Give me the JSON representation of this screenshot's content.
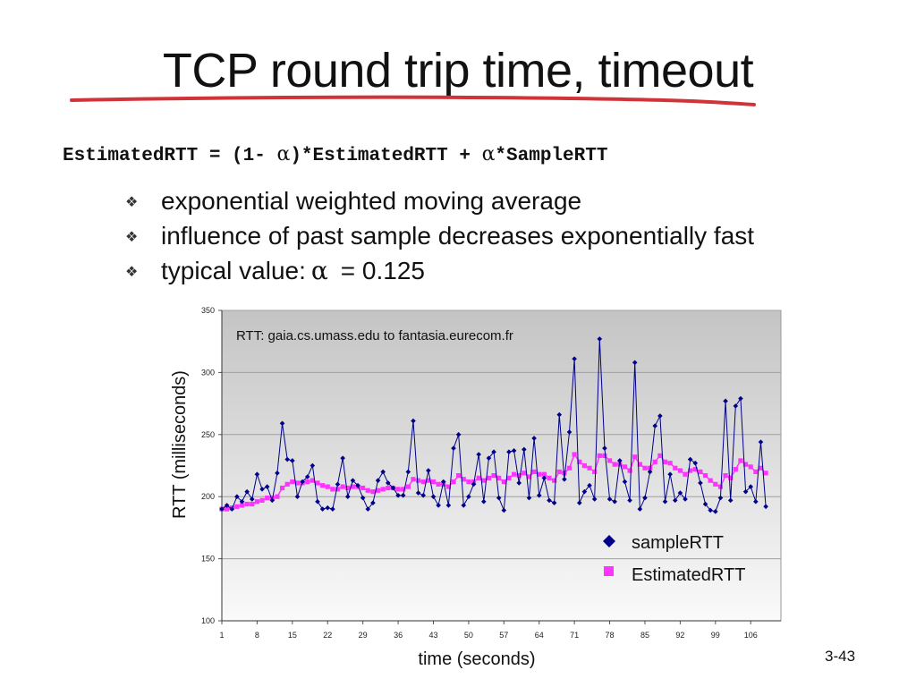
{
  "slide": {
    "title": "TCP round trip time, timeout",
    "formula": {
      "part1": "EstimatedRTT = (1- ",
      "alpha_1": "α",
      "part2": ")*EstimatedRTT + ",
      "alpha_2": "α",
      "part3": "*SampleRTT"
    },
    "bullets": [
      {
        "text": "exponential weighted moving average"
      },
      {
        "text": "influence of past sample decreases exponentially fast"
      },
      {
        "text": "typical value:",
        "alpha": "α",
        "value": "= 0.125"
      }
    ],
    "page_number": "3-43",
    "colors": {
      "title_underline": "#d13438",
      "plot_bg": "#cccccc",
      "sample": "#00008b",
      "estimated": "#ff33ff"
    }
  },
  "chart_data": {
    "type": "line",
    "title": "RTT: gaia.cs.umass.edu to fantasia.eurecom.fr",
    "xlabel": "time (seconds)",
    "ylabel": "RTT (milliseconds)",
    "ylim": [
      100,
      350
    ],
    "yticks": [
      100,
      150,
      200,
      250,
      300,
      350
    ],
    "xticks": [
      1,
      8,
      15,
      22,
      29,
      36,
      43,
      50,
      57,
      64,
      71,
      78,
      85,
      92,
      99,
      106
    ],
    "xlim": [
      1,
      112
    ],
    "grid": true,
    "legend": "bottom-right",
    "series": [
      {
        "name": "sampleRTT",
        "marker": "diamond",
        "color": "#00008b",
        "values": [
          190,
          193,
          190,
          200,
          196,
          204,
          198,
          218,
          206,
          208,
          197,
          219,
          259,
          230,
          229,
          200,
          212,
          216,
          225,
          196,
          190,
          191,
          190,
          210,
          231,
          200,
          213,
          209,
          199,
          190,
          195,
          213,
          220,
          211,
          207,
          201,
          201,
          220,
          261,
          203,
          201,
          221,
          200,
          193,
          212,
          193,
          239,
          250,
          193,
          200,
          210,
          234,
          196,
          231,
          236,
          199,
          189,
          236,
          237,
          211,
          238,
          199,
          247,
          201,
          215,
          197,
          195,
          266,
          214,
          252,
          311,
          195,
          204,
          209,
          198,
          327,
          239,
          198,
          196,
          229,
          212,
          197,
          308,
          190,
          199,
          220,
          257,
          265,
          196,
          218,
          197,
          203,
          198,
          230,
          227,
          211,
          194,
          189,
          188,
          199,
          277,
          197,
          273,
          279,
          204,
          208,
          196,
          244,
          192
        ],
        "x": [
          1,
          2,
          3,
          4,
          5,
          6,
          7,
          8,
          9,
          10,
          11,
          12,
          13,
          14,
          15,
          16,
          17,
          18,
          19,
          20,
          21,
          22,
          23,
          24,
          25,
          26,
          27,
          28,
          29,
          30,
          31,
          32,
          33,
          34,
          35,
          36,
          37,
          38,
          39,
          40,
          41,
          42,
          43,
          44,
          45,
          46,
          47,
          48,
          49,
          50,
          51,
          52,
          53,
          54,
          55,
          56,
          57,
          58,
          59,
          60,
          61,
          62,
          63,
          64,
          65,
          66,
          67,
          68,
          69,
          70,
          71,
          72,
          73,
          74,
          75,
          76,
          77,
          78,
          79,
          80,
          81,
          82,
          83,
          84,
          85,
          86,
          87,
          88,
          89,
          90,
          91,
          92,
          93,
          94,
          95,
          96,
          97,
          98,
          99,
          100,
          101,
          102,
          103,
          104,
          105,
          106,
          107,
          108,
          109
        ]
      },
      {
        "name": "EstimatedRTT",
        "marker": "square",
        "color": "#ff33ff",
        "values": [
          190,
          190,
          191,
          192,
          193,
          194,
          194,
          196,
          197,
          199,
          199,
          200,
          207,
          210,
          212,
          211,
          211,
          212,
          213,
          211,
          209,
          208,
          206,
          206,
          208,
          207,
          208,
          208,
          207,
          205,
          204,
          205,
          206,
          207,
          207,
          206,
          206,
          208,
          214,
          213,
          212,
          213,
          212,
          210,
          210,
          208,
          212,
          217,
          214,
          212,
          212,
          215,
          213,
          215,
          217,
          215,
          212,
          215,
          218,
          217,
          219,
          216,
          220,
          218,
          218,
          215,
          213,
          220,
          219,
          223,
          234,
          228,
          225,
          223,
          220,
          233,
          233,
          229,
          226,
          226,
          224,
          221,
          232,
          226,
          223,
          223,
          228,
          233,
          228,
          227,
          223,
          221,
          218,
          221,
          222,
          220,
          217,
          213,
          210,
          208,
          217,
          215,
          222,
          229,
          226,
          224,
          220,
          223,
          219
        ],
        "x": [
          1,
          2,
          3,
          4,
          5,
          6,
          7,
          8,
          9,
          10,
          11,
          12,
          13,
          14,
          15,
          16,
          17,
          18,
          19,
          20,
          21,
          22,
          23,
          24,
          25,
          26,
          27,
          28,
          29,
          30,
          31,
          32,
          33,
          34,
          35,
          36,
          37,
          38,
          39,
          40,
          41,
          42,
          43,
          44,
          45,
          46,
          47,
          48,
          49,
          50,
          51,
          52,
          53,
          54,
          55,
          56,
          57,
          58,
          59,
          60,
          61,
          62,
          63,
          64,
          65,
          66,
          67,
          68,
          69,
          70,
          71,
          72,
          73,
          74,
          75,
          76,
          77,
          78,
          79,
          80,
          81,
          82,
          83,
          84,
          85,
          86,
          87,
          88,
          89,
          90,
          91,
          92,
          93,
          94,
          95,
          96,
          97,
          98,
          99,
          100,
          101,
          102,
          103,
          104,
          105,
          106,
          107,
          108,
          109
        ]
      }
    ]
  }
}
